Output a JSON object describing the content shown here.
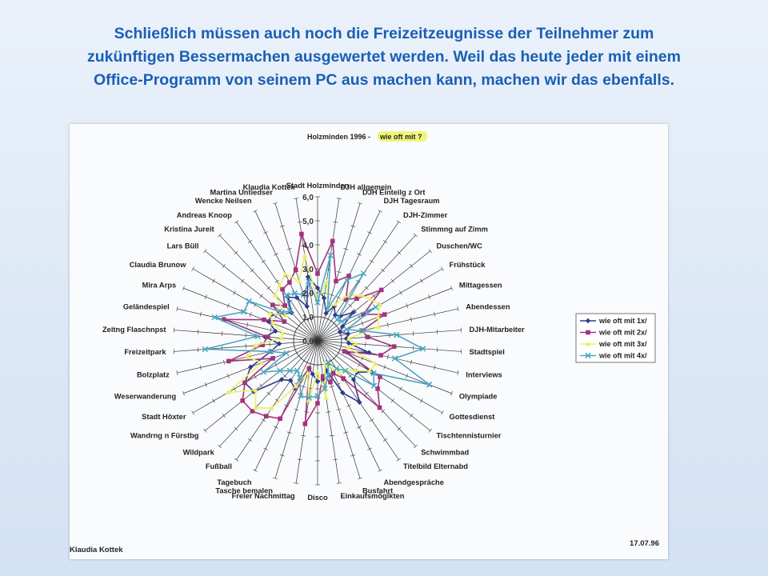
{
  "slide": {
    "lines": [
      "Schließlich müssen auch noch die Freizeitzeugnisse der Teilnehmer  zum",
      "zukünftigen Bessermachen  ausgewertet werden. Weil das heute jeder mit einem",
      "Office-Programm  von seinem PC aus machen kann, machen wir das ebenfalls."
    ],
    "text_color": "#1a5fb4"
  },
  "document": {
    "author": "Klaudia Kottek",
    "date": "17.07.96"
  },
  "chart_data": {
    "type": "radar",
    "title_prefix": "Holzminden 1996 - ",
    "title_highlight": "wie oft mit ?",
    "highlight_color": "#f0f57a",
    "rmax": 6.0,
    "ticks": [
      {
        "value": 0.0,
        "label": "0,0"
      },
      {
        "value": 1.0,
        "label": "1,0"
      },
      {
        "value": 2.0,
        "label": "2,0"
      },
      {
        "value": 3.0,
        "label": "3,0"
      },
      {
        "value": 4.0,
        "label": "4,0"
      },
      {
        "value": 5.0,
        "label": "5,0"
      },
      {
        "value": 6.0,
        "label": "6,0"
      }
    ],
    "categories": [
      "Stadt Holzminden",
      "DJH allgemein",
      "DJH Einteilg z Ort",
      "DJH Tagesraum",
      "DJH-Zimmer",
      "Stimmng auf Zimm",
      "Duschen/WC",
      "Frühstück",
      "Mittagessen",
      "Abendessen",
      "DJH-Mitarbeiter",
      "Stadtspiel",
      "Interviews",
      "Olympiade",
      "Gottesdienst",
      "Tischtennisturnier",
      "Schwimmbad",
      "Titelbild Elternabd",
      "Abendgespräche",
      "Busfahrt",
      "Einkaufsmöglkten",
      "Disco",
      "Freier Nachmittag",
      "Tasche bemalen",
      "Tagebuch",
      "Fußball",
      "Wildpark",
      "Wandrng n Fürstbg",
      "Stadt Höxter",
      "Weserwanderung",
      "Bolzplatz",
      "Freizeitpark",
      "Zeitng Flaschnpst",
      "Geländespiel",
      "Mira Arps",
      "Claudia Brunow",
      "Lars Büll",
      "Kristina Jureit",
      "Andreas Knoop",
      "Wencke Neilsen",
      "Martina Untiedser",
      "Klaudia Kottek"
    ],
    "series": [
      {
        "name": "wie oft mit 1x/",
        "color": "#2f3b8f",
        "marker": "diamond",
        "values": [
          2.2,
          1.8,
          1.2,
          1.6,
          1.3,
          1.4,
          1.9,
          1.2,
          1.0,
          1.3,
          1.2,
          1.3,
          2.2,
          1.3,
          2.6,
          2.1,
          2.2,
          3.1,
          2.4,
          1.3,
          1.6,
          1.7,
          1.4,
          1.2,
          2.2,
          2.0,
          2.2,
          3.4,
          3.5,
          3.0,
          2.0,
          1.6,
          2.2,
          1.8,
          2.2,
          2.2,
          1.8,
          1.6,
          2.2,
          2.0,
          1.5,
          2.7
        ]
      },
      {
        "name": "wie oft mit 2x/",
        "color": "#a4337d",
        "marker": "square",
        "values": [
          2.8,
          4.2,
          2.6,
          3.0,
          2.1,
          2.4,
          3.4,
          2.2,
          3.0,
          1.9,
          2.1,
          3.2,
          2.7,
          1.2,
          3.0,
          3.2,
          3.8,
          1.9,
          1.5,
          1.8,
          1.5,
          2.6,
          3.5,
          1.2,
          3.6,
          3.8,
          4.0,
          4.0,
          3.5,
          2.0,
          3.8,
          2.3,
          2.1,
          4.0,
          2.4,
          1.6,
          2.4,
          2.0,
          2.6,
          2.7,
          3.1,
          4.5
        ]
      },
      {
        "name": "wie oft mit 3x/",
        "color": "#eaee6a",
        "marker": "triangle",
        "values": [
          1.7,
          2.5,
          1.5,
          1.7,
          2.3,
          2.6,
          2.8,
          3.0,
          2.7,
          2.6,
          1.3,
          1.6,
          1.3,
          2.6,
          2.5,
          2.0,
          1.7,
          1.6,
          1.2,
          1.0,
          2.4,
          1.3,
          2.5,
          1.4,
          2.1,
          3.4,
          3.8,
          3.3,
          4.3,
          2.5,
          3.0,
          2.6,
          1.5,
          1.5,
          2.0,
          2.3,
          1.7,
          2.6,
          2.8,
          3.1,
          2.6,
          3.6
        ]
      },
      {
        "name": "wie oft mit 4x/",
        "color": "#4ba6c4",
        "marker": "x",
        "values": [
          1.6,
          3.6,
          1.4,
          2.8,
          3.4,
          1.2,
          1.3,
          2.8,
          1.3,
          1.9,
          3.3,
          4.4,
          3.3,
          5.0,
          2.7,
          3.0,
          1.7,
          1.4,
          1.0,
          1.5,
          2.0,
          2.3,
          2.4,
          2.4,
          1.7,
          1.5,
          1.7,
          2.0,
          2.6,
          1.4,
          2.0,
          4.7,
          2.5,
          4.4,
          3.3,
          3.3,
          1.9,
          1.7,
          2.3,
          2.2,
          2.0,
          2.5
        ]
      }
    ],
    "grid": true,
    "legend_position": "right"
  }
}
